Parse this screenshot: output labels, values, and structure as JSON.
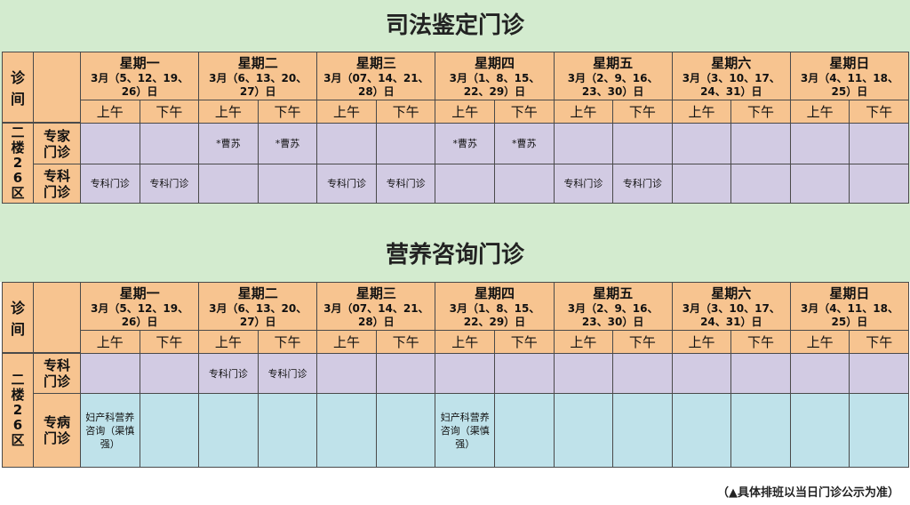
{
  "sections": [
    {
      "title": "司法鉴定门诊",
      "room_header": "诊间",
      "room": "二楼26区",
      "slots": [
        "上午",
        "下午"
      ],
      "days": [
        {
          "name": "星期一",
          "dates": "3月（5、12、19、26）日"
        },
        {
          "name": "星期二",
          "dates": "3月（6、13、20、27）日"
        },
        {
          "name": "星期三",
          "dates": "3月（07、14、21、28）日"
        },
        {
          "name": "星期四",
          "dates": "3月（1、8、15、22、29）日"
        },
        {
          "name": "星期五",
          "dates": "3月（2、9、16、23、30）日"
        },
        {
          "name": "星期六",
          "dates": "3月（3、10、17、24、31）日"
        },
        {
          "name": "星期日",
          "dates": "3月（4、11、18、25）日"
        }
      ],
      "rows": [
        {
          "label": "专家门诊",
          "cells": [
            null,
            null,
            "*曹苏",
            "*曹苏",
            null,
            null,
            "*曹苏",
            "*曹苏",
            null,
            null,
            null,
            null,
            null,
            null
          ]
        },
        {
          "label": "专科门诊",
          "cells": [
            "专科门诊",
            "专科门诊",
            null,
            null,
            "专科门诊",
            "专科门诊",
            null,
            null,
            "专科门诊",
            "专科门诊",
            null,
            null,
            null,
            null
          ]
        }
      ]
    },
    {
      "title": "营养咨询门诊",
      "room_header": "诊间",
      "room": "二楼26区",
      "slots": [
        "上午",
        "下午"
      ],
      "days": [
        {
          "name": "星期一",
          "dates": "3月（5、12、19、26）日"
        },
        {
          "name": "星期二",
          "dates": "3月（6、13、20、27）日"
        },
        {
          "name": "星期三",
          "dates": "3月（07、14、21、28）日"
        },
        {
          "name": "星期四",
          "dates": "3月（1、8、15、22、29）日"
        },
        {
          "name": "星期五",
          "dates": "3月（2、9、16、23、30）日"
        },
        {
          "name": "星期六",
          "dates": "3月（3、10、17、24、31）日"
        },
        {
          "name": "星期日",
          "dates": "3月（4、11、18、25）日"
        }
      ],
      "rows": [
        {
          "label": "专科门诊",
          "cells": [
            null,
            null,
            "专科门诊",
            "专科门诊",
            null,
            null,
            null,
            null,
            null,
            null,
            null,
            null,
            null,
            null
          ]
        },
        {
          "label": "专病门诊",
          "cells": [
            "妇产科营养咨询（渠慎强）",
            null,
            null,
            null,
            null,
            null,
            "妇产科营养咨询（渠慎强）",
            null,
            null,
            null,
            null,
            null,
            null,
            null
          ]
        }
      ]
    }
  ],
  "footnote": "（▲具体排班以当日门诊公示为准）"
}
